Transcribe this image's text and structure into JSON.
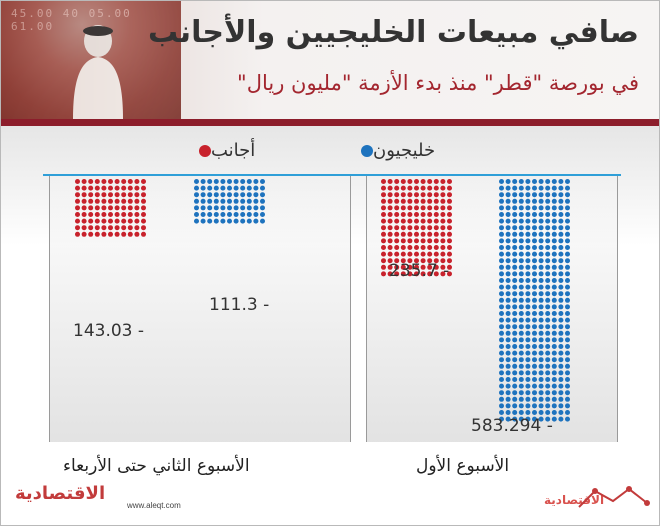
{
  "header": {
    "title": "صافي مبيعات الخليجيين والأجانب",
    "subtitle": "في بورصة \"قطر\" منذ بدء الأزمة \"مليون ريال\"",
    "board_text": "45.00 40 05.00 61.00"
  },
  "colors": {
    "gulf": "#1e73be",
    "foreign": "#c8222c",
    "rule": "#8c1d2b",
    "baseline": "#2f9fd8"
  },
  "legend": {
    "gulf": "خليجيون",
    "foreign": "أجانب"
  },
  "footer": {
    "brand": "الاقتصادية",
    "url": "www.aleqt.com",
    "brand_small": "الاقتصادية"
  },
  "chart_data": {
    "type": "bar",
    "orientation": "vertical-downward",
    "categories": [
      "الأسبوع الأول",
      "الأسبوع الثاني حتى الأربعاء"
    ],
    "series": [
      {
        "name": "خليجيون",
        "values": [
          -583.294,
          -111.3
        ],
        "labels": [
          "583.294 -",
          "111.3 -"
        ]
      },
      {
        "name": "أجانب",
        "values": [
          -235.7,
          -143.03
        ],
        "labels": [
          "235.7 -",
          "143.03 -"
        ]
      }
    ],
    "title": "صافي مبيعات الخليجيين والأجانب",
    "subtitle": "في بورصة \"قطر\" منذ بدء الأزمة \"مليون ريال\"",
    "legend_position": "top",
    "grid": false
  }
}
